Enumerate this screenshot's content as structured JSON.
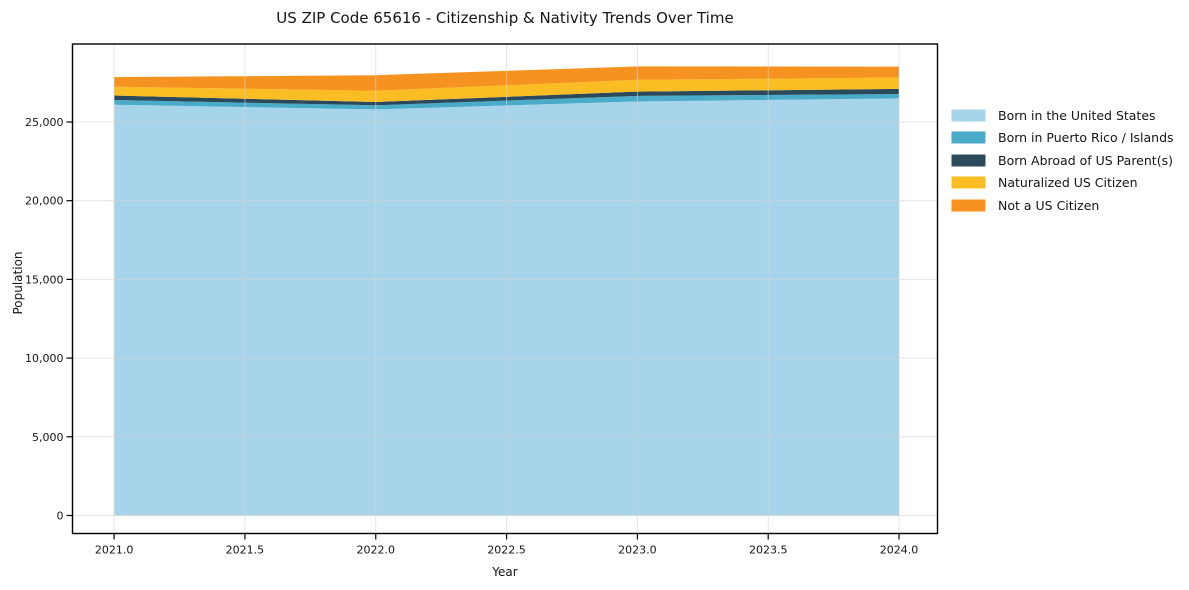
{
  "chart_data": {
    "type": "area",
    "stacked": true,
    "title": "US ZIP Code 65616 - Citizenship & Nativity Trends Over Time",
    "xlabel": "Year",
    "ylabel": "Population",
    "x": [
      2021,
      2022,
      2023,
      2024
    ],
    "xlim": [
      2020.841,
      2024.147
    ],
    "ylim": [
      -1144,
      29955
    ],
    "grid": true,
    "legend_position": "right",
    "frame_color": "#000000",
    "grid_color": "#d3d3d3",
    "xticks": {
      "values": [
        2021.0,
        2021.5,
        2022.0,
        2022.5,
        2023.0,
        2023.5,
        2024.0
      ],
      "labels": [
        "2021.0",
        "2021.5",
        "2022.0",
        "2022.5",
        "2023.0",
        "2023.5",
        "2024.0"
      ]
    },
    "yticks": {
      "values": [
        0,
        5000,
        10000,
        15000,
        20000,
        25000
      ],
      "labels": [
        "0",
        "5,000",
        "10,000",
        "15,000",
        "20,000",
        "25,000"
      ]
    },
    "series": [
      {
        "name": "Born in the United States",
        "color": "#A6D4EA",
        "values": [
          26100,
          25800,
          26300,
          26500
        ]
      },
      {
        "name": "Born in Puerto Rico / Islands",
        "color": "#4AACC8",
        "values": [
          300,
          260,
          360,
          280
        ]
      },
      {
        "name": "Born Abroad of US Parent(s)",
        "color": "#2A4A5C",
        "values": [
          280,
          210,
          270,
          320
        ]
      },
      {
        "name": "Naturalized US Citizen",
        "color": "#FBBD24",
        "values": [
          560,
          720,
          750,
          720
        ]
      },
      {
        "name": "Not a US Citizen",
        "color": "#F6921F",
        "values": [
          610,
          980,
          850,
          700
        ]
      }
    ]
  }
}
